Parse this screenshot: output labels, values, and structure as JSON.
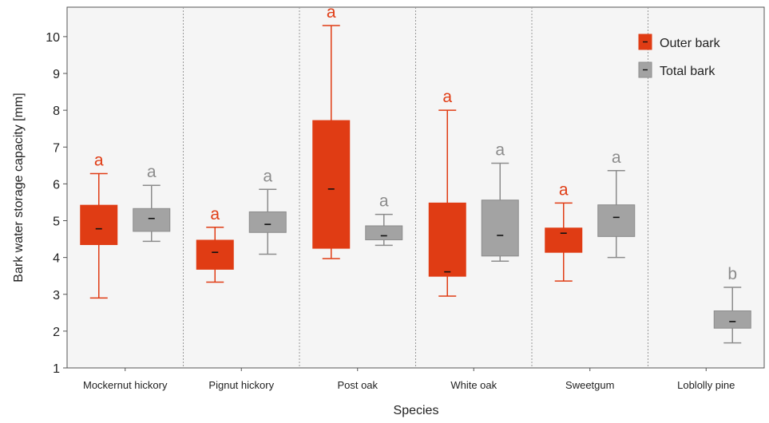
{
  "chart_data": {
    "type": "boxplot",
    "title": "",
    "xlabel": "Species",
    "ylabel": "Bark water storage capacity [mm]",
    "ylim": [
      1,
      10.8
    ],
    "yticks": [
      1,
      2,
      3,
      4,
      5,
      6,
      7,
      8,
      9,
      10
    ],
    "grid": "vertical dotted separators between categories",
    "legend_position": "top-right",
    "categories": [
      "Mockernut hickory",
      "Pignut hickory",
      "Post oak",
      "White oak",
      "Sweetgum",
      "Loblolly pine"
    ],
    "series": [
      {
        "name": "Outer bark",
        "color": "#e03c14",
        "boxes": [
          {
            "category": "Mockernut hickory",
            "min": 2.9,
            "q1": 4.35,
            "median": 4.78,
            "q3": 5.42,
            "max": 6.28,
            "letter": "a"
          },
          {
            "category": "Pignut hickory",
            "min": 3.33,
            "q1": 3.68,
            "median": 4.14,
            "q3": 4.47,
            "max": 4.82,
            "letter": "a"
          },
          {
            "category": "Post oak",
            "min": 3.97,
            "q1": 4.25,
            "median": 5.86,
            "q3": 7.72,
            "max": 10.3,
            "letter": "a"
          },
          {
            "category": "White oak",
            "min": 2.95,
            "q1": 3.49,
            "median": 3.61,
            "q3": 5.48,
            "max": 8.0,
            "letter": "a"
          },
          {
            "category": "Sweetgum",
            "min": 3.36,
            "q1": 4.14,
            "median": 4.66,
            "q3": 4.8,
            "max": 5.48,
            "letter": "a"
          }
        ]
      },
      {
        "name": "Total bark",
        "color": "#a3a3a3",
        "boxes": [
          {
            "category": "Mockernut hickory",
            "min": 4.44,
            "q1": 4.71,
            "median": 5.06,
            "q3": 5.33,
            "max": 5.96,
            "letter": "a"
          },
          {
            "category": "Pignut hickory",
            "min": 4.09,
            "q1": 4.68,
            "median": 4.9,
            "q3": 5.24,
            "max": 5.85,
            "letter": "a"
          },
          {
            "category": "Post oak",
            "min": 4.33,
            "q1": 4.48,
            "median": 4.59,
            "q3": 4.86,
            "max": 5.17,
            "letter": "a"
          },
          {
            "category": "White oak",
            "min": 3.9,
            "q1": 4.04,
            "median": 4.6,
            "q3": 5.56,
            "max": 6.56,
            "letter": "a"
          },
          {
            "category": "Sweetgum",
            "min": 4.0,
            "q1": 4.57,
            "median": 5.09,
            "q3": 5.43,
            "max": 6.36,
            "letter": "a"
          },
          {
            "category": "Loblolly pine",
            "min": 1.68,
            "q1": 2.08,
            "median": 2.26,
            "q3": 2.55,
            "max": 3.19,
            "letter": "b"
          }
        ]
      }
    ]
  }
}
